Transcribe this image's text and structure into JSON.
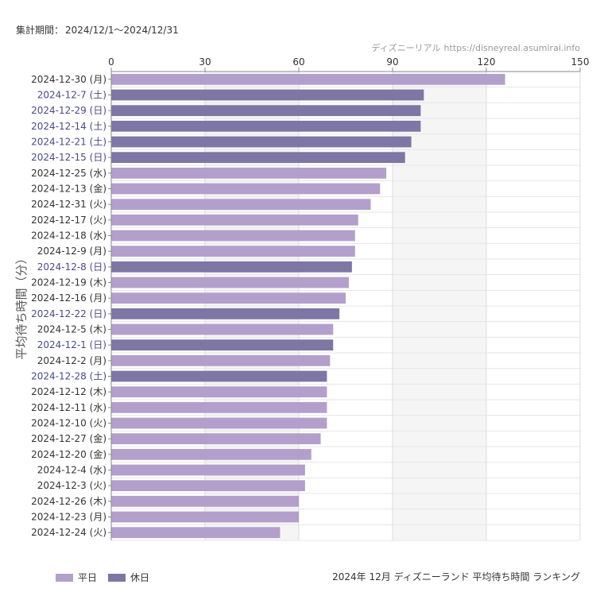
{
  "header": {
    "period_label": "集計期間：",
    "period_value": "2024/12/1～2024/12/31",
    "site_name": "ディズニーリアル",
    "site_url": "https://disneyreal.asumirai.info"
  },
  "footer": {
    "title": "2024年 12月 ディズニーランド 平均待ち時間 ランキング"
  },
  "colors": {
    "weekday": "#b39fcc",
    "holiday": "#7e76a4",
    "holiday_label": "#4a4a8a",
    "weekday_label": "#333333"
  },
  "chart_data": {
    "type": "bar",
    "orientation": "horizontal",
    "ylabel": "平均待ち時間（分）",
    "xlim": [
      0,
      150
    ],
    "xticks": [
      0,
      30,
      60,
      90,
      120,
      150
    ],
    "legend": [
      {
        "name": "平日",
        "key": "weekday"
      },
      {
        "name": "休日",
        "key": "holiday"
      }
    ],
    "legend_position": "bottom-left",
    "grid": true,
    "categories": [
      "2024-12-30 (月)",
      "2024-12-7 (土)",
      "2024-12-29 (日)",
      "2024-12-14 (土)",
      "2024-12-21 (土)",
      "2024-12-15 (日)",
      "2024-12-25 (水)",
      "2024-12-13 (金)",
      "2024-12-31 (火)",
      "2024-12-17 (火)",
      "2024-12-18 (水)",
      "2024-12-9 (月)",
      "2024-12-8 (日)",
      "2024-12-19 (木)",
      "2024-12-16 (月)",
      "2024-12-22 (日)",
      "2024-12-5 (木)",
      "2024-12-1 (日)",
      "2024-12-2 (月)",
      "2024-12-28 (土)",
      "2024-12-12 (木)",
      "2024-12-11 (水)",
      "2024-12-10 (火)",
      "2024-12-27 (金)",
      "2024-12-20 (金)",
      "2024-12-4 (水)",
      "2024-12-3 (火)",
      "2024-12-26 (木)",
      "2024-12-23 (月)",
      "2024-12-24 (火)"
    ],
    "values": [
      126,
      100,
      99,
      99,
      96,
      94,
      88,
      86,
      83,
      79,
      78,
      78,
      77,
      76,
      75,
      73,
      71,
      71,
      70,
      69,
      69,
      69,
      69,
      67,
      64,
      62,
      62,
      60,
      60,
      54
    ],
    "day_type": [
      "weekday",
      "holiday",
      "holiday",
      "holiday",
      "holiday",
      "holiday",
      "weekday",
      "weekday",
      "weekday",
      "weekday",
      "weekday",
      "weekday",
      "holiday",
      "weekday",
      "weekday",
      "holiday",
      "weekday",
      "holiday",
      "weekday",
      "holiday",
      "weekday",
      "weekday",
      "weekday",
      "weekday",
      "weekday",
      "weekday",
      "weekday",
      "weekday",
      "weekday",
      "weekday"
    ]
  }
}
